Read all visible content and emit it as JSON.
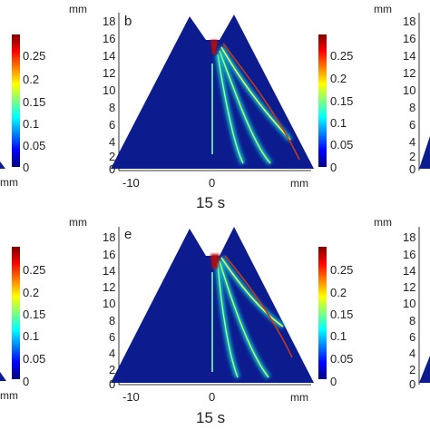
{
  "colors": {
    "domain_fill": "#0c1c8f",
    "colormap": [
      "#00007f",
      "#0000ff",
      "#007fff",
      "#00ffff",
      "#7fff7f",
      "#ffff00",
      "#ff7f00",
      "#ff0000",
      "#7f0000"
    ]
  },
  "panels": [
    {
      "id": "b",
      "letter": "b",
      "caption": "15 s"
    },
    {
      "id": "e",
      "letter": "e",
      "caption": "15 s"
    }
  ],
  "chart_data": [
    {
      "type": "heatmap",
      "panel": "b",
      "xlabel": "mm",
      "ylabel": "mm",
      "x_ticks": [
        "-10",
        "0",
        "mm"
      ],
      "y_ticks": [
        "0",
        "2",
        "4",
        "6",
        "8",
        "10",
        "12",
        "14",
        "16",
        "18"
      ],
      "xlim": [
        -13,
        13
      ],
      "ylim": [
        0,
        19
      ],
      "colorbar": {
        "ticks": [
          "0",
          "0.05",
          "0.1",
          "0.15",
          "0.2",
          "0.25"
        ],
        "range": [
          0,
          0.29
        ]
      }
    },
    {
      "type": "heatmap",
      "panel": "e",
      "xlabel": "mm",
      "ylabel": "mm",
      "x_ticks": [
        "-10",
        "0",
        "mm"
      ],
      "y_ticks": [
        "0",
        "2",
        "4",
        "6",
        "8",
        "10",
        "12",
        "14",
        "16",
        "18"
      ],
      "xlim": [
        -13,
        13
      ],
      "ylim": [
        0,
        19
      ],
      "colorbar": {
        "ticks": [
          "0",
          "0.05",
          "0.1",
          "0.15",
          "0.2",
          "0.25"
        ],
        "range": [
          0,
          0.29
        ]
      }
    }
  ],
  "side_fragments": {
    "left_colorbar_ticks": [
      "0.25",
      "0.2",
      "0.15",
      "0.1",
      "0.05",
      "0"
    ],
    "left_unit": "mm",
    "right_unit": "mm",
    "right_y_ticks": [
      "18",
      "16",
      "14",
      "12",
      "10",
      "8",
      "6",
      "4",
      "2",
      "0"
    ]
  }
}
